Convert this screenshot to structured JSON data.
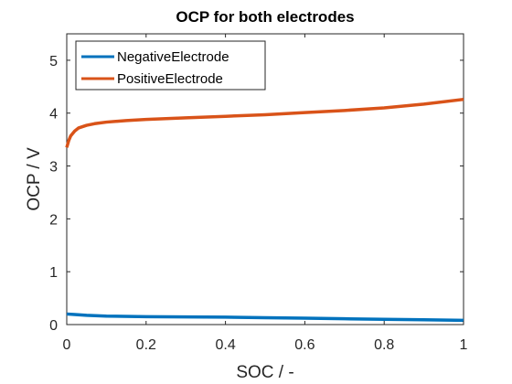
{
  "chart_data": {
    "type": "line",
    "title": "OCP for both electrodes",
    "xlabel": "SOC  / -",
    "ylabel": "OCP  / V",
    "xlim": [
      0,
      1
    ],
    "ylim": [
      0,
      5.5
    ],
    "xticks": [
      0,
      0.2,
      0.4,
      0.6,
      0.8,
      1
    ],
    "xtick_labels": [
      "0",
      "0.2",
      "0.4",
      "0.6",
      "0.8",
      "1"
    ],
    "yticks": [
      0,
      1,
      2,
      3,
      4,
      5
    ],
    "ytick_labels": [
      "0",
      "1",
      "2",
      "3",
      "4",
      "5"
    ],
    "grid": false,
    "legend_position": "top-left",
    "series": [
      {
        "name": "NegativeElectrode",
        "color": "#0072BD",
        "x": [
          0,
          0.02,
          0.05,
          0.1,
          0.2,
          0.3,
          0.4,
          0.5,
          0.6,
          0.7,
          0.8,
          0.9,
          1.0
        ],
        "y": [
          0.2,
          0.19,
          0.175,
          0.16,
          0.15,
          0.145,
          0.14,
          0.13,
          0.12,
          0.11,
          0.1,
          0.09,
          0.08
        ]
      },
      {
        "name": "PositiveElectrode",
        "color": "#D95319",
        "x": [
          0,
          0.005,
          0.01,
          0.02,
          0.03,
          0.05,
          0.07,
          0.1,
          0.15,
          0.2,
          0.3,
          0.4,
          0.5,
          0.6,
          0.7,
          0.8,
          0.9,
          1.0
        ],
        "y": [
          3.35,
          3.48,
          3.57,
          3.66,
          3.72,
          3.77,
          3.8,
          3.83,
          3.86,
          3.88,
          3.91,
          3.94,
          3.97,
          4.01,
          4.05,
          4.1,
          4.17,
          4.26
        ]
      }
    ]
  }
}
